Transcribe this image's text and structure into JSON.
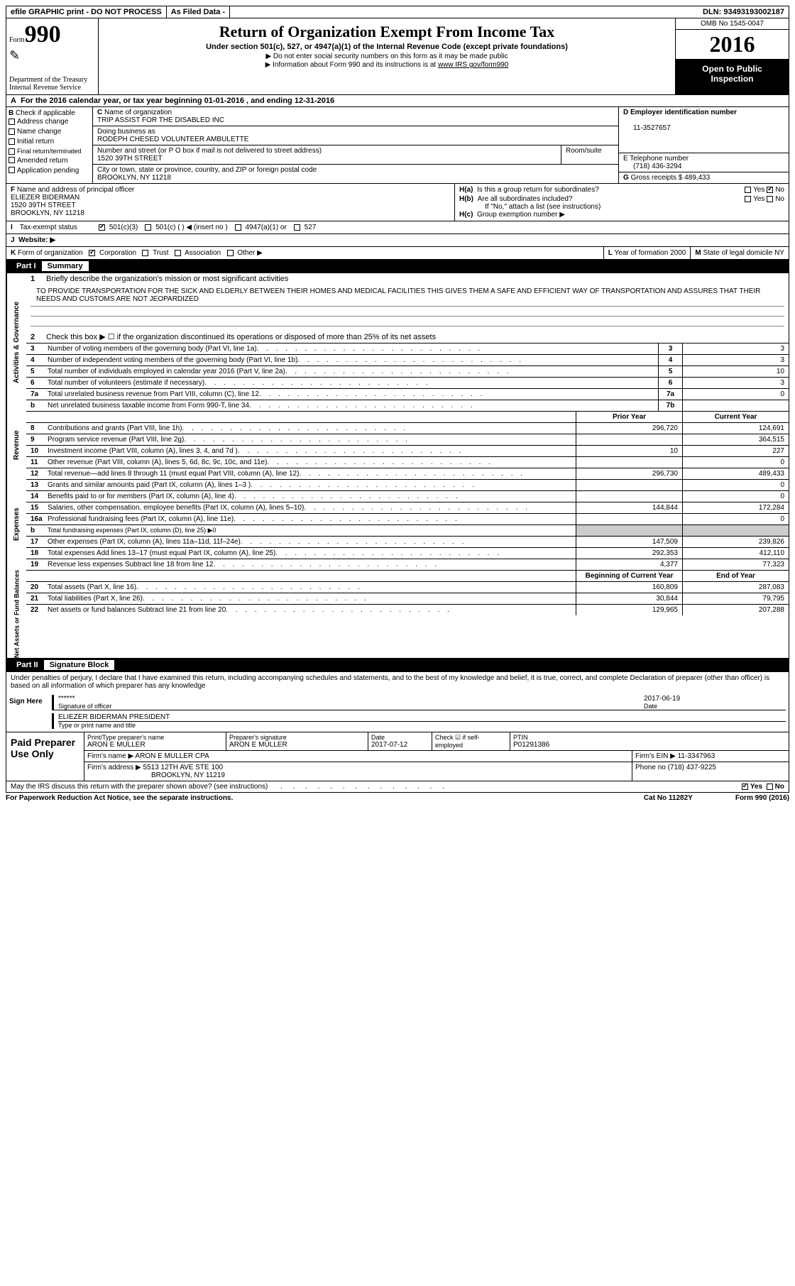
{
  "top": {
    "efile": "efile GRAPHIC print - DO NOT PROCESS",
    "asfiled": "As Filed Data -",
    "dln_label": "DLN:",
    "dln": "93493193002187"
  },
  "header": {
    "form_label": "Form",
    "form_num": "990",
    "dept1": "Department of the Treasury",
    "dept2": "Internal Revenue Service",
    "title": "Return of Organization Exempt From Income Tax",
    "subtitle": "Under section 501(c), 527, or 4947(a)(1) of the Internal Revenue Code (except private foundations)",
    "note1": "▶ Do not enter social security numbers on this form as it may be made public",
    "note2_a": "▶ Information about Form 990 and its instructions is at ",
    "note2_b": "www IRS gov/form990",
    "omb": "OMB No  1545-0047",
    "year": "2016",
    "inspect1": "Open to Public",
    "inspect2": "Inspection"
  },
  "row_a": {
    "label": "A",
    "text": "For the 2016 calendar year, or tax year beginning 01-01-2016   , and ending 12-31-2016"
  },
  "b": {
    "label": "B",
    "heading": "Check if applicable",
    "opts": [
      "Address change",
      "Name change",
      "Initial return",
      "Final return/terminated",
      "Amended return",
      "Application pending"
    ]
  },
  "c": {
    "label": "C",
    "name_label": "Name of organization",
    "name": "TRIP ASSIST FOR THE DISABLED INC",
    "dba_label": "Doing business as",
    "dba": "RODEPH CHESED VOLUNTEER AMBULETTE",
    "street_label": "Number and street (or P O  box if mail is not delivered to street address)",
    "room_label": "Room/suite",
    "street": "1520 39TH STREET",
    "city_label": "City or town, state or province, country, and ZIP or foreign postal code",
    "city": "BROOKLYN, NY  11218"
  },
  "d": {
    "label": "D Employer identification number",
    "value": "11-3527657"
  },
  "e": {
    "label": "E Telephone number",
    "value": "(718) 436-3294"
  },
  "g": {
    "label": "G",
    "text": "Gross receipts $",
    "value": "489,433"
  },
  "f": {
    "label": "F",
    "heading": "Name and address of principal officer",
    "name": "ELIEZER BIDERMAN",
    "street": "1520 39TH STREET",
    "city": "BROOKLYN, NY  11218"
  },
  "h": {
    "a_label": "H(a)",
    "a_text": "Is this a group return for subordinates?",
    "yes": "Yes",
    "no": "No",
    "b_label": "H(b)",
    "b_text": "Are all subordinates included?",
    "note": "If \"No,\" attach a list  (see instructions)",
    "c_label": "H(c)",
    "c_text": "Group exemption number ▶"
  },
  "i": {
    "label": "I",
    "text": "Tax-exempt status",
    "opts": [
      "501(c)(3)",
      "501(c) (  ) ◀ (insert no )",
      "4947(a)(1) or",
      "527"
    ]
  },
  "j": {
    "label": "J",
    "text": "Website: ▶"
  },
  "k": {
    "label": "K",
    "text": "Form of organization",
    "opts": [
      "Corporation",
      "Trust",
      "Association",
      "Other ▶"
    ]
  },
  "l": {
    "label": "L",
    "text": "Year of formation",
    "value": "2000"
  },
  "m": {
    "label": "M",
    "text": "State of legal domicile",
    "value": "NY"
  },
  "part1": {
    "label": "Part I",
    "title": "Summary",
    "side1": "Activities & Governance",
    "side2": "Revenue",
    "side3": "Expenses",
    "side4": "Net Assets or Fund Balances",
    "l1_label": "1",
    "l1_text": "Briefly describe the organization's mission or most significant activities",
    "mission": "TO PROVIDE TRANSPORTATION FOR THE SICK AND ELDERLY BETWEEN THEIR HOMES AND MEDICAL FACILITIES  THIS GIVES THEM A SAFE AND EFFICIENT WAY OF TRANSPORTATION AND ASSURES THAT THEIR NEEDS AND CUSTOMS ARE NOT JEOPARDIZED",
    "l2_label": "2",
    "l2_text": "Check this box ▶ ☐ if the organization discontinued its operations or disposed of more than 25% of its net assets",
    "lines_gov": [
      {
        "n": "3",
        "t": "Number of voting members of the governing body (Part VI, line 1a)",
        "k": "3",
        "v": "3"
      },
      {
        "n": "4",
        "t": "Number of independent voting members of the governing body (Part VI, line 1b)",
        "k": "4",
        "v": "3"
      },
      {
        "n": "5",
        "t": "Total number of individuals employed in calendar year 2016 (Part V, line 2a)",
        "k": "5",
        "v": "10"
      },
      {
        "n": "6",
        "t": "Total number of volunteers (estimate if necessary)",
        "k": "6",
        "v": "3"
      },
      {
        "n": "7a",
        "t": "Total unrelated business revenue from Part VIII, column (C), line 12",
        "k": "7a",
        "v": "0"
      },
      {
        "n": "b",
        "t": "Net unrelated business taxable income from Form 990-T, line 34",
        "k": "7b",
        "v": ""
      }
    ],
    "col_prior": "Prior Year",
    "col_current": "Current Year",
    "col_begin": "Beginning of Current Year",
    "col_end": "End of Year",
    "lines_rev": [
      {
        "n": "8",
        "t": "Contributions and grants (Part VIII, line 1h)",
        "p": "296,720",
        "c": "124,691"
      },
      {
        "n": "9",
        "t": "Program service revenue (Part VIII, line 2g)",
        "p": "",
        "c": "364,515"
      },
      {
        "n": "10",
        "t": "Investment income (Part VIII, column (A), lines 3, 4, and 7d )",
        "p": "10",
        "c": "227"
      },
      {
        "n": "11",
        "t": "Other revenue (Part VIII, column (A), lines 5, 6d, 8c, 9c, 10c, and 11e)",
        "p": "",
        "c": "0"
      },
      {
        "n": "12",
        "t": "Total revenue—add lines 8 through 11 (must equal Part VIII, column (A), line 12)",
        "p": "296,730",
        "c": "489,433"
      }
    ],
    "lines_exp": [
      {
        "n": "13",
        "t": "Grants and similar amounts paid (Part IX, column (A), lines 1–3 )",
        "p": "",
        "c": "0"
      },
      {
        "n": "14",
        "t": "Benefits paid to or for members (Part IX, column (A), line 4)",
        "p": "",
        "c": "0"
      },
      {
        "n": "15",
        "t": "Salaries, other compensation, employee benefits (Part IX, column (A), lines 5–10)",
        "p": "144,844",
        "c": "172,284"
      },
      {
        "n": "16a",
        "t": "Professional fundraising fees (Part IX, column (A), line 11e)",
        "p": "",
        "c": "0"
      },
      {
        "n": "b",
        "t": "Total fundraising expenses (Part IX, column (D), line 25) ▶0",
        "p": null,
        "c": null
      },
      {
        "n": "17",
        "t": "Other expenses (Part IX, column (A), lines 11a–11d, 11f–24e)",
        "p": "147,509",
        "c": "239,826"
      },
      {
        "n": "18",
        "t": "Total expenses  Add lines 13–17 (must equal Part IX, column (A), line 25)",
        "p": "292,353",
        "c": "412,110"
      },
      {
        "n": "19",
        "t": "Revenue less expenses  Subtract line 18 from line 12",
        "p": "4,377",
        "c": "77,323"
      }
    ],
    "lines_net": [
      {
        "n": "20",
        "t": "Total assets (Part X, line 16)",
        "p": "160,809",
        "c": "287,083"
      },
      {
        "n": "21",
        "t": "Total liabilities (Part X, line 26)",
        "p": "30,844",
        "c": "79,795"
      },
      {
        "n": "22",
        "t": "Net assets or fund balances  Subtract line 21 from line 20",
        "p": "129,965",
        "c": "207,288"
      }
    ]
  },
  "part2": {
    "label": "Part II",
    "title": "Signature Block",
    "perjury": "Under penalties of perjury, I declare that I have examined this return, including accompanying schedules and statements, and to the best of my knowledge and belief, it is true, correct, and complete  Declaration of preparer (other than officer) is based on all information of which preparer has any knowledge",
    "sign_label": "Sign Here",
    "sig_stars": "******",
    "sig_of_officer": "Signature of officer",
    "date_label": "Date",
    "sig_date": "2017-06-19",
    "name_title": "ELIEZER BIDERMAN PRESIDENT",
    "type_print": "Type or print name and title",
    "paid_label": "Paid Preparer Use Only",
    "prep_name_label": "Print/Type preparer's name",
    "prep_name": "ARON E MULLER",
    "prep_sig_label": "Preparer's signature",
    "prep_sig": "ARON E MULLER",
    "prep_date_label": "Date",
    "prep_date": "2017-07-12",
    "check_label": "Check ☑ if self-employed",
    "ptin_label": "PTIN",
    "ptin": "P01291386",
    "firm_name_label": "Firm's name    ▶",
    "firm_name": "ARON E MULLER CPA",
    "firm_ein_label": "Firm's EIN ▶",
    "firm_ein": "11-3347963",
    "firm_addr_label": "Firm's address ▶",
    "firm_addr1": "5513 12TH AVE STE 100",
    "firm_addr2": "BROOKLYN, NY  11219",
    "phone_label": "Phone no",
    "phone": "(718) 437-9225",
    "discuss": "May the IRS discuss this return with the preparer shown above? (see instructions)",
    "yes": "Yes",
    "no": "No"
  },
  "footer": {
    "pra": "For Paperwork Reduction Act Notice, see the separate instructions.",
    "cat": "Cat No 11282Y",
    "form": "Form 990 (2016)"
  }
}
